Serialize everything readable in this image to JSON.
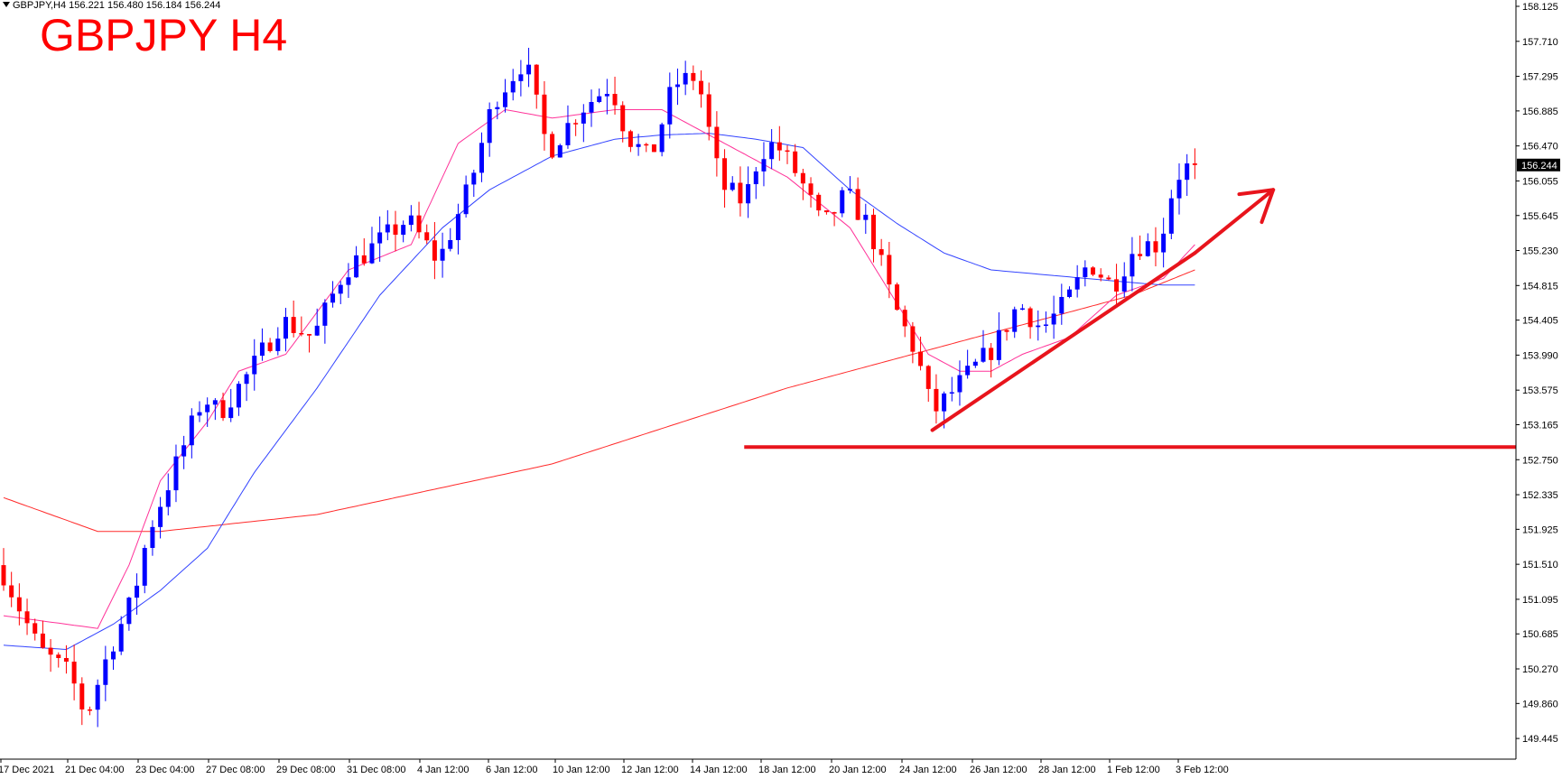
{
  "header": {
    "symbol_info": "GBPJPY,H4  156.221 156.480 156.184 156.244"
  },
  "title": "GBPJPY H4",
  "colors": {
    "bull": "#0000ff",
    "bear": "#ff0000",
    "ma_fast": "#ff3399",
    "ma_mid": "#3344ff",
    "ma_slow": "#ff2a2a",
    "annotation": "#e8141c",
    "price_tag_bg": "#000000",
    "price_tag_fg": "#ffffff"
  },
  "chart_data": {
    "type": "candlestick",
    "ylim": [
      149.2,
      158.2
    ],
    "y_ticks": [
      "158.125",
      "157.710",
      "157.295",
      "156.885",
      "156.470",
      "156.055",
      "155.645",
      "155.230",
      "154.815",
      "154.405",
      "153.990",
      "153.575",
      "153.165",
      "152.750",
      "152.335",
      "151.925",
      "151.510",
      "151.095",
      "150.685",
      "150.270",
      "149.860",
      "149.445"
    ],
    "x_labels": [
      "17 Dec 2021",
      "21 Dec 04:00",
      "23 Dec 04:00",
      "27 Dec 08:00",
      "29 Dec 08:00",
      "31 Dec 08:00",
      "4 Jan 12:00",
      "6 Jan 12:00",
      "10 Jan 12:00",
      "12 Jan 12:00",
      "14 Jan 12:00",
      "18 Jan 12:00",
      "20 Jan 12:00",
      "24 Jan 12:00",
      "26 Jan 12:00",
      "28 Jan 12:00",
      "1 Feb 12:00",
      "3 Feb 12:00"
    ],
    "current_price": "156.244",
    "anchors": [
      [
        0,
        151.5
      ],
      [
        5,
        150.5
      ],
      [
        9,
        150.2
      ],
      [
        11,
        149.7
      ],
      [
        14,
        150.5
      ],
      [
        17,
        151.1
      ],
      [
        19,
        151.9
      ],
      [
        23,
        152.8
      ],
      [
        26,
        153.5
      ],
      [
        28,
        153.3
      ],
      [
        32,
        153.8
      ],
      [
        36,
        154.4
      ],
      [
        40,
        154.2
      ],
      [
        44,
        155.0
      ],
      [
        48,
        155.3
      ],
      [
        52,
        155.6
      ],
      [
        56,
        155.1
      ],
      [
        60,
        156.0
      ],
      [
        63,
        157.0
      ],
      [
        67,
        157.5
      ],
      [
        70,
        156.4
      ],
      [
        74,
        156.9
      ],
      [
        78,
        157.2
      ],
      [
        80,
        156.6
      ],
      [
        83,
        156.3
      ],
      [
        86,
        157.2
      ],
      [
        89,
        157.3
      ],
      [
        92,
        156.0
      ],
      [
        95,
        155.8
      ],
      [
        97,
        156.4
      ],
      [
        99,
        156.5
      ],
      [
        102,
        156.1
      ],
      [
        105,
        155.5
      ],
      [
        108,
        155.9
      ],
      [
        111,
        155.5
      ],
      [
        114,
        154.6
      ],
      [
        117,
        154.0
      ],
      [
        119,
        153.3
      ],
      [
        122,
        153.6
      ],
      [
        124,
        153.8
      ],
      [
        127,
        154.1
      ],
      [
        130,
        154.6
      ],
      [
        133,
        154.3
      ],
      [
        136,
        154.6
      ],
      [
        139,
        155.1
      ],
      [
        142,
        154.8
      ],
      [
        145,
        155.3
      ],
      [
        148,
        155.3
      ],
      [
        150,
        156.1
      ],
      [
        152,
        156.25
      ]
    ],
    "ma_fast": [
      [
        0,
        150.9
      ],
      [
        8,
        150.8
      ],
      [
        12,
        150.75
      ],
      [
        16,
        151.5
      ],
      [
        20,
        152.5
      ],
      [
        26,
        153.2
      ],
      [
        30,
        153.8
      ],
      [
        36,
        154.0
      ],
      [
        44,
        155.0
      ],
      [
        52,
        155.3
      ],
      [
        58,
        156.5
      ],
      [
        64,
        156.9
      ],
      [
        70,
        156.8
      ],
      [
        78,
        156.9
      ],
      [
        84,
        156.9
      ],
      [
        92,
        156.5
      ],
      [
        100,
        156.1
      ],
      [
        108,
        155.5
      ],
      [
        114,
        154.6
      ],
      [
        118,
        154.0
      ],
      [
        122,
        153.8
      ],
      [
        126,
        153.8
      ],
      [
        130,
        154.0
      ],
      [
        136,
        154.2
      ],
      [
        142,
        154.7
      ],
      [
        148,
        154.9
      ],
      [
        152,
        155.3
      ]
    ],
    "ma_mid": [
      [
        0,
        150.55
      ],
      [
        8,
        150.5
      ],
      [
        14,
        150.8
      ],
      [
        20,
        151.2
      ],
      [
        26,
        151.7
      ],
      [
        32,
        152.6
      ],
      [
        40,
        153.6
      ],
      [
        48,
        154.7
      ],
      [
        56,
        155.5
      ],
      [
        62,
        155.95
      ],
      [
        70,
        156.35
      ],
      [
        78,
        156.55
      ],
      [
        84,
        156.6
      ],
      [
        90,
        156.62
      ],
      [
        96,
        156.55
      ],
      [
        102,
        156.45
      ],
      [
        108,
        155.95
      ],
      [
        114,
        155.55
      ],
      [
        120,
        155.2
      ],
      [
        126,
        155.0
      ],
      [
        132,
        154.95
      ],
      [
        138,
        154.9
      ],
      [
        144,
        154.85
      ],
      [
        148,
        154.82
      ],
      [
        152,
        154.82
      ]
    ],
    "ma_slow": [
      [
        0,
        152.3
      ],
      [
        6,
        152.1
      ],
      [
        12,
        151.9
      ],
      [
        20,
        151.9
      ],
      [
        30,
        152.0
      ],
      [
        40,
        152.1
      ],
      [
        50,
        152.3
      ],
      [
        60,
        152.5
      ],
      [
        70,
        152.7
      ],
      [
        80,
        153.0
      ],
      [
        90,
        153.3
      ],
      [
        100,
        153.6
      ],
      [
        108,
        153.8
      ],
      [
        114,
        153.95
      ],
      [
        120,
        154.1
      ],
      [
        126,
        154.25
      ],
      [
        132,
        154.4
      ],
      [
        138,
        154.55
      ],
      [
        144,
        154.7
      ],
      [
        148,
        154.85
      ],
      [
        152,
        155.0
      ]
    ],
    "support_level": 152.9,
    "trendline": {
      "from": [
        118.5,
        153.1
      ],
      "to": [
        152,
        155.2
      ]
    },
    "arrow": {
      "from": [
        152,
        155.2
      ],
      "to": [
        162,
        155.95
      ]
    }
  }
}
